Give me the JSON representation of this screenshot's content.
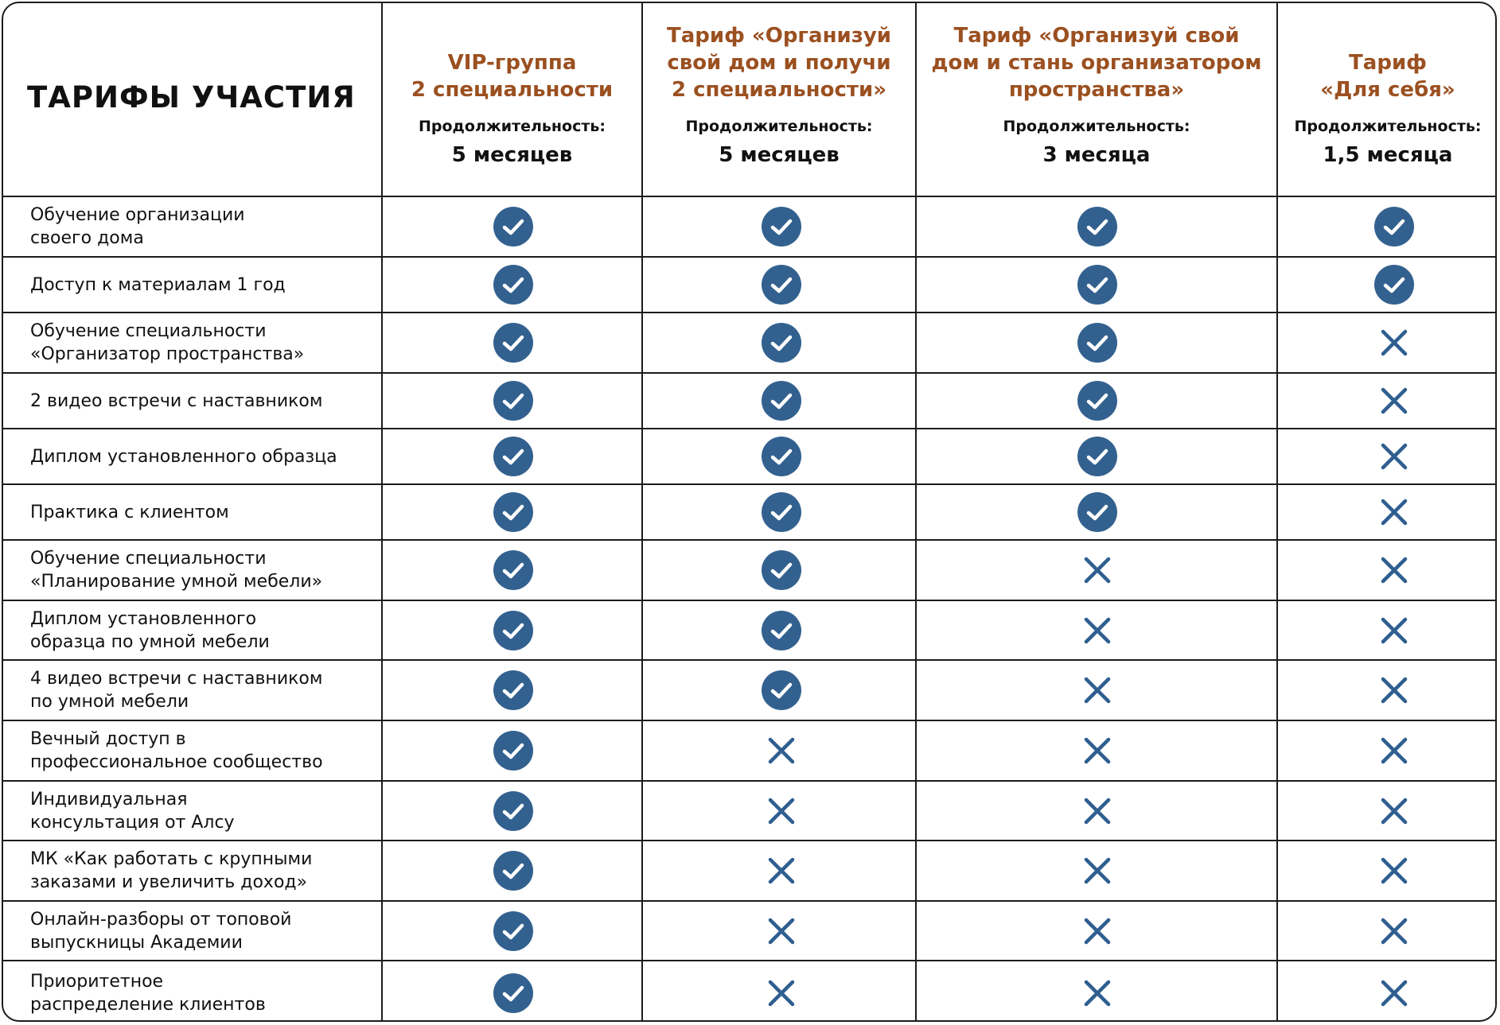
{
  "title": "ТАРИФЫ УЧАСТИЯ",
  "colors": {
    "accent": "#9b5020",
    "check": "#33618f",
    "cross": "#2f5e90",
    "border": "#1c1c1c"
  },
  "plans": [
    {
      "name": "VIP-группа\n2 специальности",
      "duration_label": "Продолжительность:",
      "duration": "5 месяцев"
    },
    {
      "name": "Тариф «Организуй\nсвой дом и получи\n2 специальности»",
      "duration_label": "Продолжительность:",
      "duration": "5 месяцев"
    },
    {
      "name": "Тариф «Организуй свой\nдом и стань организатором\nпространства»",
      "duration_label": "Продолжительность:",
      "duration": "3 месяца"
    },
    {
      "name": "Тариф\n«Для себя»",
      "duration_label": "Продолжительность:",
      "duration": "1,5 месяца"
    }
  ],
  "features": [
    {
      "label": "Обучение организации\nсвоего дома",
      "included": [
        true,
        true,
        true,
        true
      ]
    },
    {
      "label": "Доступ к материалам 1 год",
      "included": [
        true,
        true,
        true,
        true
      ]
    },
    {
      "label": "Обучение специальности\n«Организатор пространства»",
      "included": [
        true,
        true,
        true,
        false
      ]
    },
    {
      "label": "2 видео встречи с наставником",
      "included": [
        true,
        true,
        true,
        false
      ]
    },
    {
      "label": "Диплом установленного образца",
      "included": [
        true,
        true,
        true,
        false
      ]
    },
    {
      "label": "Практика с клиентом",
      "included": [
        true,
        true,
        true,
        false
      ]
    },
    {
      "label": "Обучение специальности\n«Планирование умной мебели»",
      "included": [
        true,
        true,
        false,
        false
      ]
    },
    {
      "label": "Диплом установленного\nобразца по умной мебели",
      "included": [
        true,
        true,
        false,
        false
      ]
    },
    {
      "label": "4 видео встречи с наставником\nпо умной мебели",
      "included": [
        true,
        true,
        false,
        false
      ]
    },
    {
      "label": "Вечный доступ в\nпрофессиональное сообщество",
      "included": [
        true,
        false,
        false,
        false
      ]
    },
    {
      "label": "Индивидуальная\nконсультация от Алсу",
      "included": [
        true,
        false,
        false,
        false
      ]
    },
    {
      "label": "МК «Как работать с крупными\nзаказами и увеличить доход»",
      "included": [
        true,
        false,
        false,
        false
      ]
    },
    {
      "label": "Онлайн-разборы от топовой\nвыпускницы Академии",
      "included": [
        true,
        false,
        false,
        false
      ]
    },
    {
      "label": "Приоритетное\nраспределение клиентов",
      "included": [
        true,
        false,
        false,
        false
      ]
    }
  ]
}
